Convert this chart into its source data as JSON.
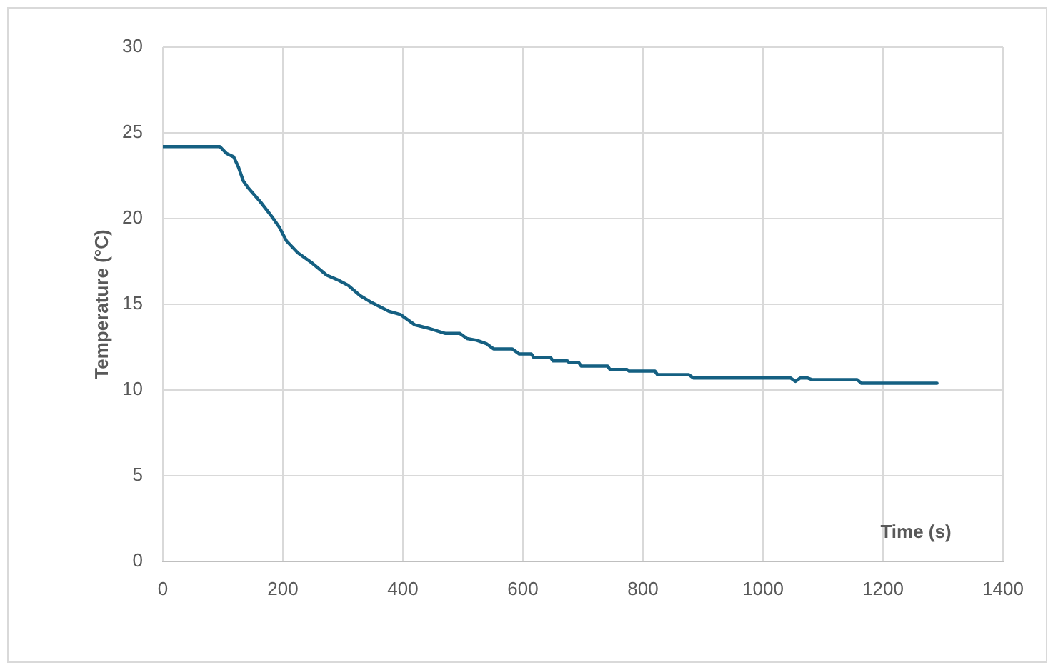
{
  "chart_data": {
    "type": "line",
    "xlabel": "Time (s)",
    "ylabel": "Temperature (°C)",
    "x": [
      0,
      95,
      106,
      118,
      126,
      134,
      142,
      162,
      182,
      194,
      206,
      225,
      249,
      273,
      293,
      309,
      329,
      348,
      376,
      396,
      420,
      443,
      471,
      495,
      507,
      523,
      539,
      551,
      582,
      594,
      614,
      618,
      646,
      650,
      674,
      677,
      693,
      697,
      741,
      745,
      773,
      777,
      820,
      824,
      876,
      884,
      1046,
      1054,
      1062,
      1074,
      1082,
      1157,
      1164,
      1290
    ],
    "series": [
      {
        "color": "#156082",
        "values": [
          24.2,
          24.2,
          23.8,
          23.6,
          23.0,
          22.2,
          21.8,
          21.0,
          20.1,
          19.5,
          18.7,
          18.0,
          17.4,
          16.7,
          16.4,
          16.1,
          15.5,
          15.1,
          14.6,
          14.4,
          13.8,
          13.6,
          13.3,
          13.3,
          13.0,
          12.9,
          12.7,
          12.4,
          12.4,
          12.1,
          12.1,
          11.9,
          11.9,
          11.7,
          11.7,
          11.6,
          11.6,
          11.4,
          11.4,
          11.2,
          11.2,
          11.1,
          11.1,
          10.9,
          10.9,
          10.7,
          10.7,
          10.5,
          10.7,
          10.7,
          10.6,
          10.6,
          10.4,
          10.4
        ]
      }
    ],
    "xlim": [
      0,
      1400
    ],
    "xticks": [
      0,
      200,
      400,
      600,
      800,
      1000,
      1200,
      1400
    ],
    "ylim": [
      0,
      30
    ],
    "yticks": [
      0,
      5,
      10,
      15,
      20,
      25,
      30
    ],
    "grid": true,
    "marker": "none"
  }
}
